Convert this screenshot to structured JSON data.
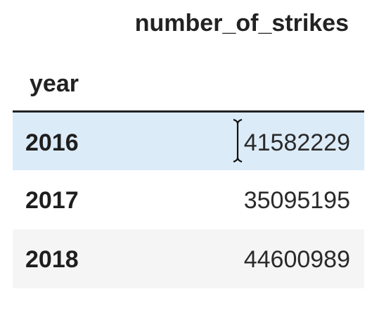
{
  "table": {
    "column_header": "number_of_strikes",
    "index_name": "year",
    "rows": [
      {
        "index": "2016",
        "value": "41582229"
      },
      {
        "index": "2017",
        "value": "35095195"
      },
      {
        "index": "2018",
        "value": "44600989"
      }
    ]
  },
  "colors": {
    "hover_row": "#dcebf8",
    "alt_row": "#f5f5f5",
    "header_rule": "#222222"
  },
  "icons": {
    "cursor": "text-cursor-icon"
  }
}
